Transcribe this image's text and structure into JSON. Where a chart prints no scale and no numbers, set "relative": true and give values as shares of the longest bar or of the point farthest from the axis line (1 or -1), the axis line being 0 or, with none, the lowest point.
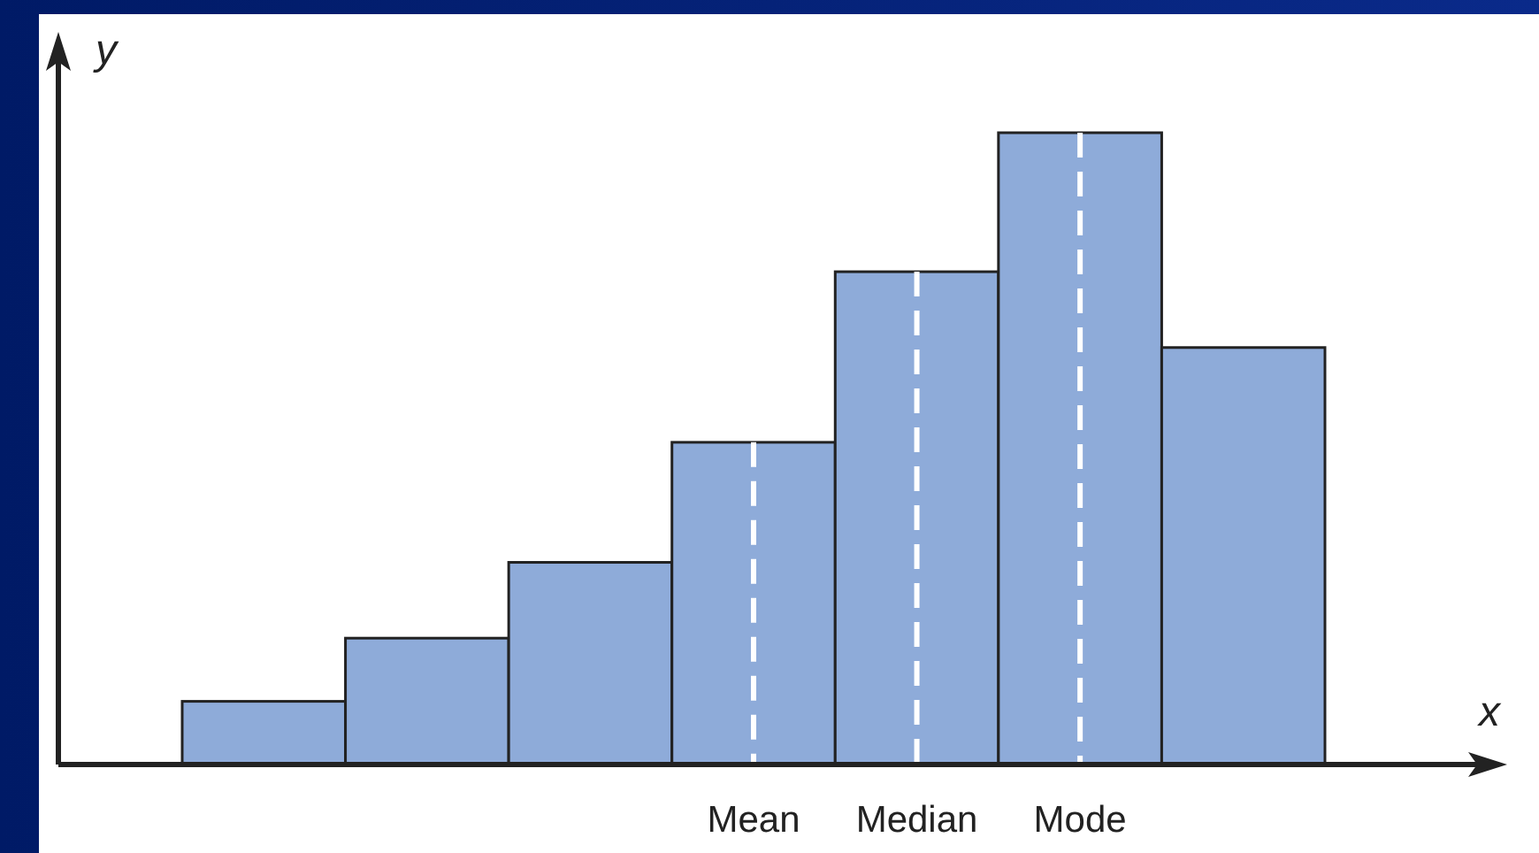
{
  "chart_data": {
    "type": "bar",
    "relative": true,
    "xlabel": "x",
    "ylabel": "y",
    "categories": [
      null,
      null,
      null,
      "Mean",
      "Median",
      "Mode",
      null
    ],
    "values": [
      0.1,
      0.2,
      0.32,
      0.51,
      0.78,
      1,
      0.66
    ],
    "color": "#8eabd9",
    "ref_lines": [
      {
        "axis": "x",
        "value": "Mean",
        "color": "#ffffff",
        "line_style": "dashed"
      },
      {
        "axis": "x",
        "value": "Median",
        "color": "#ffffff",
        "line_style": "dashed"
      },
      {
        "axis": "x",
        "value": "Mode",
        "color": "#ffffff",
        "line_style": "dashed"
      }
    ]
  }
}
